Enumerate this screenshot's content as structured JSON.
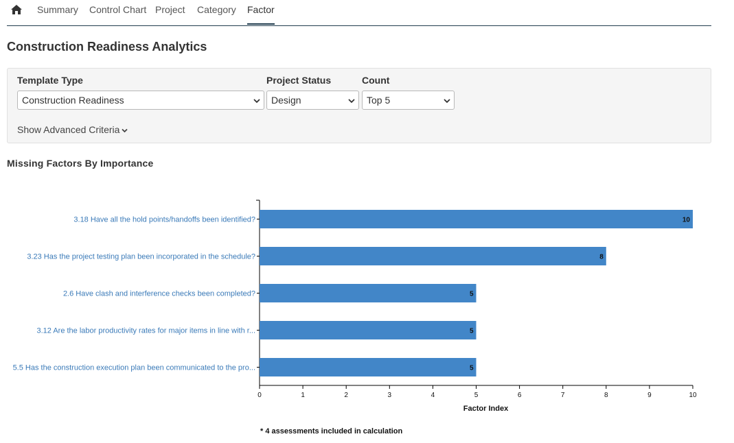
{
  "nav": {
    "tabs": [
      {
        "label": "Summary"
      },
      {
        "label": "Control Chart"
      },
      {
        "label": "Project"
      },
      {
        "label": "Category"
      },
      {
        "label": "Factor"
      }
    ],
    "active_tab": "Factor"
  },
  "page_title": "Construction Readiness Analytics",
  "criteria": {
    "template_type": {
      "label": "Template Type",
      "value": "Construction Readiness"
    },
    "project_status": {
      "label": "Project Status",
      "value": "Design"
    },
    "count": {
      "label": "Count",
      "value": "Top 5"
    },
    "advanced_label": "Show Advanced Criteria"
  },
  "chart_section_title": "Missing Factors By Importance",
  "chart_data": {
    "type": "bar",
    "orientation": "horizontal",
    "categories": [
      "3.18 Have all the hold points/handoffs been identified?",
      "3.23 Has the project testing plan been incorporated in the schedule?",
      "2.6 Have clash and interference checks been completed?",
      "3.12 Are the labor productivity rates for major items in line with r...",
      "5.5 Has the construction execution plan been communicated to the pro..."
    ],
    "values": [
      10,
      8,
      5,
      5,
      5
    ],
    "xlabel": "Factor Index",
    "xlim": [
      0,
      10
    ],
    "xticks": [
      0,
      1,
      2,
      3,
      4,
      5,
      6,
      7,
      8,
      9,
      10
    ],
    "bar_color": "#4286c8",
    "label_color": "#3a7ab8",
    "footnote": "* 4 assessments included in calculation"
  }
}
